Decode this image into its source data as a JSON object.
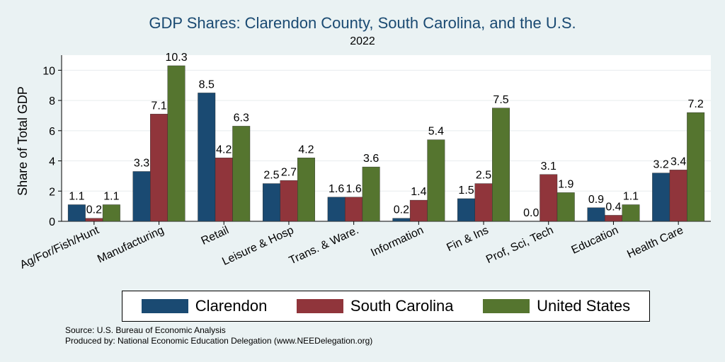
{
  "chart_data": {
    "type": "bar",
    "title": "GDP Shares: Clarendon County, South Carolina, and the U.S.",
    "subtitle": "2022",
    "xlabel": "",
    "ylabel": "Share of Total GDP",
    "ylim": [
      0,
      11
    ],
    "yticks": [
      0,
      2,
      4,
      6,
      8,
      10
    ],
    "grid": true,
    "categories": [
      "Ag/For/Fish/Hunt",
      "Manufacturing",
      "Retail",
      "Leisure & Hosp",
      "Trans. & Ware.",
      "Information",
      "Fin & Ins",
      "Prof, Sci, Tech",
      "Education",
      "Health Care"
    ],
    "series": [
      {
        "name": "Clarendon",
        "color": "#1a4a72",
        "values": [
          1.1,
          3.3,
          8.5,
          2.5,
          1.6,
          0.2,
          1.5,
          0.0,
          0.9,
          3.2
        ]
      },
      {
        "name": "South Carolina",
        "color": "#90353b",
        "values": [
          0.2,
          7.1,
          4.2,
          2.7,
          1.6,
          1.4,
          2.5,
          3.1,
          0.4,
          3.4
        ]
      },
      {
        "name": "United States",
        "color": "#55752f",
        "values": [
          1.1,
          10.3,
          6.3,
          4.2,
          3.6,
          5.4,
          7.5,
          1.9,
          1.1,
          7.2
        ]
      }
    ],
    "legend_position": "bottom",
    "source_lines": [
      "Source: U.S. Bureau of Economic Analysis",
      "Produced by: National Economic Education Delegation (www.NEEDelegation.org)"
    ]
  }
}
